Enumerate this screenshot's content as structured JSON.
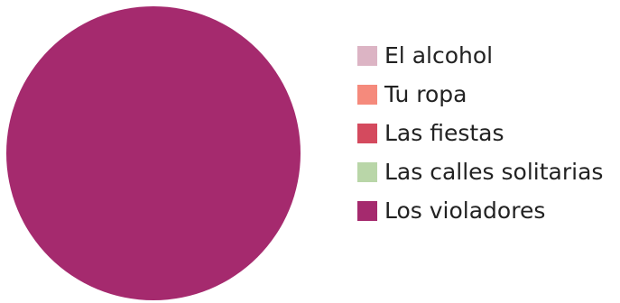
{
  "chart_data": {
    "type": "pie",
    "title": "",
    "legend_position": "right",
    "slices": [
      {
        "label": "El alcohol",
        "value": 0,
        "color": "#dcb4c4"
      },
      {
        "label": "Tu ropa",
        "value": 0,
        "color": "#f58a7c"
      },
      {
        "label": "Las fiestas",
        "value": 0,
        "color": "#d44a5e"
      },
      {
        "label": "Las calles solitarias",
        "value": 0,
        "color": "#b9d6a8"
      },
      {
        "label": "Los violadores",
        "value": 100,
        "color": "#a52a6e"
      }
    ]
  }
}
